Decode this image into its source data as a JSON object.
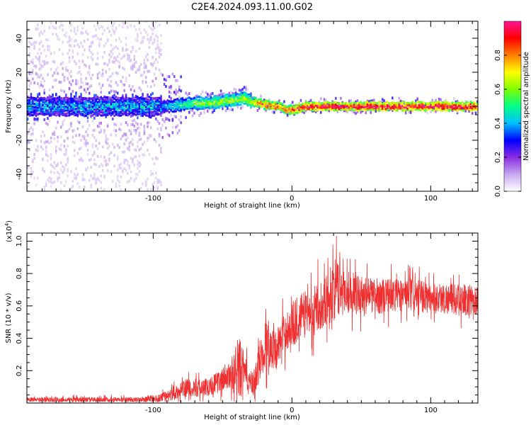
{
  "title": "C2E4.2024.093.11.00.G02",
  "chart_data": [
    {
      "type": "heatmap",
      "xlabel": "Height of straight line (km)",
      "ylabel": "Frequency (Hz)",
      "xlim": [
        -191,
        134
      ],
      "ylim": [
        -50,
        50
      ],
      "xticks": [
        -100,
        0,
        100
      ],
      "yticks": [
        -40,
        -20,
        0,
        20,
        40
      ],
      "ridge": {
        "x": [
          -191,
          -130,
          -100,
          -90,
          -80,
          -70,
          -60,
          -50,
          -40,
          -35,
          -30,
          -25,
          -20,
          -10,
          -5,
          0,
          10,
          20,
          30,
          40,
          60,
          80,
          100,
          120,
          134
        ],
        "freq": [
          0,
          0,
          0,
          0,
          1,
          2,
          2,
          3,
          4,
          5,
          3,
          2,
          1,
          0,
          -2,
          -2,
          0,
          0,
          0,
          0,
          0,
          0,
          0,
          0,
          0
        ],
        "amp": [
          0.2,
          0.22,
          0.3,
          0.4,
          0.5,
          0.55,
          0.6,
          0.62,
          0.62,
          0.6,
          0.65,
          0.8,
          0.85,
          0.85,
          0.8,
          0.85,
          0.95,
          0.95,
          0.95,
          0.95,
          0.95,
          0.95,
          0.95,
          0.95,
          0.95
        ]
      },
      "colorbar": {
        "label": "Normalized spectral amplitude",
        "range": [
          0,
          1
        ],
        "ticks": [
          "0.0",
          "0.2",
          "0.4",
          "0.6",
          "0.8"
        ],
        "stops": [
          "#ffffff",
          "#c8a8f0",
          "#8a2be2",
          "#0000ff",
          "#00bfff",
          "#00ff88",
          "#7fff00",
          "#ffff00",
          "#ff7f00",
          "#ff0000",
          "#ff1493"
        ]
      }
    },
    {
      "type": "line",
      "xlabel": "Height of straight line (km)",
      "ylabel": "SNR (10 * v/v)",
      "yscale_label": "(x10",
      "yscale_exp": "4",
      "xlim": [
        -191,
        134
      ],
      "ylim": [
        0,
        1.05
      ],
      "xticks": [
        -100,
        0,
        100
      ],
      "yticks": [
        0.2,
        0.4,
        0.6,
        0.8,
        1.0
      ],
      "ytick_labels": [
        "0.2",
        "0.4",
        "0.6",
        "0.8",
        "1.0"
      ],
      "color": "#f03030",
      "series": [
        {
          "x": [
            -191,
            -150,
            -110,
            -95,
            -85,
            -75,
            -65,
            -55,
            -45,
            -38,
            -32,
            -28,
            -22,
            -18,
            -12,
            -5,
            0,
            5,
            15,
            25,
            30,
            35,
            45,
            60,
            80,
            100,
            120,
            134
          ],
          "values": [
            0.02,
            0.02,
            0.02,
            0.03,
            0.06,
            0.1,
            0.09,
            0.12,
            0.17,
            0.22,
            0.16,
            0.1,
            0.3,
            0.38,
            0.33,
            0.44,
            0.48,
            0.53,
            0.57,
            0.64,
            0.7,
            0.7,
            0.68,
            0.66,
            0.67,
            0.65,
            0.64,
            0.63
          ],
          "noise": [
            0.02,
            0.02,
            0.02,
            0.03,
            0.05,
            0.07,
            0.07,
            0.08,
            0.1,
            0.25,
            0.1,
            0.1,
            0.18,
            0.2,
            0.15,
            0.15,
            0.18,
            0.18,
            0.18,
            0.2,
            0.25,
            0.2,
            0.15,
            0.14,
            0.13,
            0.12,
            0.12,
            0.12
          ]
        }
      ]
    }
  ]
}
